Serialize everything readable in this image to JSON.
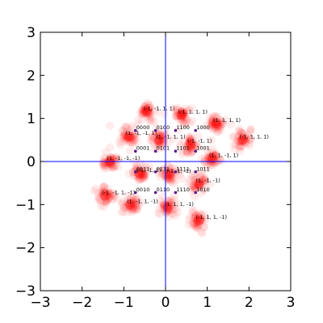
{
  "chart_data": {
    "type": "scatter",
    "title": "",
    "xlabel": "",
    "ylabel": "",
    "xlim": [
      -3,
      3
    ],
    "ylim": [
      -3,
      3
    ],
    "xticks": [
      "−3",
      "−2",
      "−1",
      "0",
      "1",
      "2",
      "3"
    ],
    "yticks": [
      "−3",
      "−2",
      "−1",
      "0",
      "1",
      "2",
      "3"
    ],
    "grid": false,
    "axes_lines": {
      "x": 0,
      "y": 0,
      "color": "#0000ff"
    },
    "clusters": {
      "color": "#ff0000",
      "centers": [
        {
          "label": "(-1, -1, 1, 1)",
          "x": -0.45,
          "y": 1.15
        },
        {
          "label": "(-1, 1, 1, 1)",
          "x": 0.38,
          "y": 1.08
        },
        {
          "label": "(1, 1, 1, 1)",
          "x": 1.22,
          "y": 0.88
        },
        {
          "label": "(-1, 1, 1, 1)",
          "x": 1.85,
          "y": 0.5
        },
        {
          "label": "(1, -1, -1, 1)",
          "x": -0.88,
          "y": 0.58
        },
        {
          "label": "(1, -1, 1, 1)",
          "x": -0.15,
          "y": 0.5
        },
        {
          "label": "(-1, -1, 1)",
          "x": 0.6,
          "y": 0.4
        },
        {
          "label": "(1, 1, -1, 1)",
          "x": 1.12,
          "y": 0.07
        },
        {
          "label": "(1, -1, -1, -1)",
          "x": -1.33,
          "y": 0.0
        },
        {
          "label": "(-1, -1, 1)",
          "x": -0.62,
          "y": -0.28
        },
        {
          "label": "(-1, 1, -1)",
          "x": 0.1,
          "y": -0.3
        },
        {
          "label": "(1, -1, -1)",
          "x": 0.8,
          "y": -0.52
        },
        {
          "label": "(-1, -1, 1, -1)",
          "x": -1.45,
          "y": -0.8
        },
        {
          "label": "(1, -1, 1, -1)",
          "x": -0.85,
          "y": -1.0
        },
        {
          "label": "(1, 1, 1, -1)",
          "x": 0.05,
          "y": -1.07
        },
        {
          "label": "(-1, 1, 1, -1)",
          "x": 0.8,
          "y": -1.37
        }
      ]
    },
    "codewords": {
      "color": "#5a1a8a",
      "points": [
        {
          "label": "0000",
          "x": -0.72,
          "y": 0.72
        },
        {
          "label": "0100",
          "x": -0.24,
          "y": 0.72
        },
        {
          "label": "1100",
          "x": 0.24,
          "y": 0.72
        },
        {
          "label": "1000",
          "x": 0.72,
          "y": 0.72
        },
        {
          "label": "0001",
          "x": -0.72,
          "y": 0.24
        },
        {
          "label": "0101",
          "x": -0.24,
          "y": 0.24
        },
        {
          "label": "1101",
          "x": 0.24,
          "y": 0.24
        },
        {
          "label": "1001",
          "x": 0.72,
          "y": 0.24
        },
        {
          "label": "0011",
          "x": -0.72,
          "y": -0.24
        },
        {
          "label": "0111",
          "x": -0.24,
          "y": -0.24
        },
        {
          "label": "1111",
          "x": 0.24,
          "y": -0.24
        },
        {
          "label": "1011",
          "x": 0.72,
          "y": -0.24
        },
        {
          "label": "0010",
          "x": -0.72,
          "y": -0.72
        },
        {
          "label": "0110",
          "x": -0.24,
          "y": -0.72
        },
        {
          "label": "1110",
          "x": 0.24,
          "y": -0.72
        },
        {
          "label": "1010",
          "x": 0.72,
          "y": -0.72
        }
      ]
    }
  }
}
